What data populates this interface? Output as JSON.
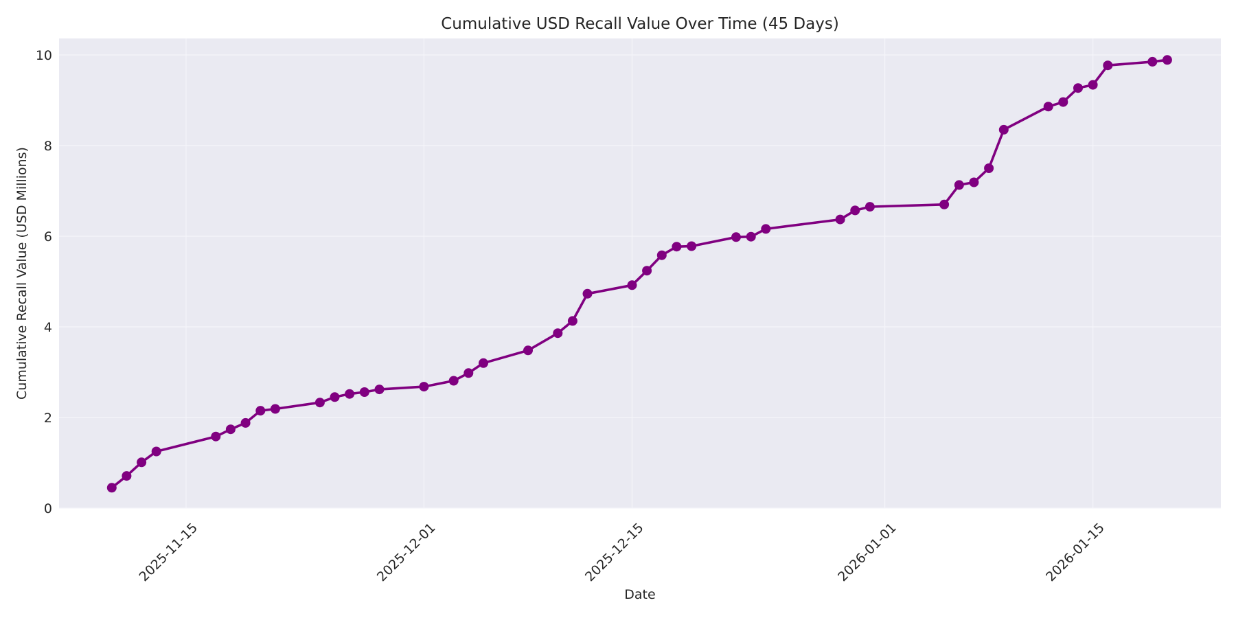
{
  "chart_data": {
    "type": "line",
    "title": "Cumulative USD Recall Value Over Time (45 Days)",
    "xlabel": "Date",
    "ylabel": "Cumulative Recall Value (USD Millions)",
    "ylim": [
      0,
      10.3
    ],
    "xlim": [
      "2025-11-06",
      "2026-01-23"
    ],
    "grid": true,
    "legend": null,
    "line_color": "#800080",
    "marker": "circle",
    "background_color": "#EAEAF2",
    "y_ticks": [
      0,
      2,
      4,
      6,
      8,
      10
    ],
    "x_ticks": [
      "2025-11-15",
      "2025-12-01",
      "2025-12-15",
      "2026-01-01",
      "2026-01-15"
    ],
    "x": [
      "2025-11-10",
      "2025-11-11",
      "2025-11-12",
      "2025-11-13",
      "2025-11-17",
      "2025-11-18",
      "2025-11-19",
      "2025-11-20",
      "2025-11-21",
      "2025-11-24",
      "2025-11-25",
      "2025-11-26",
      "2025-11-27",
      "2025-11-28",
      "2025-12-01",
      "2025-12-03",
      "2025-12-04",
      "2025-12-05",
      "2025-12-08",
      "2025-12-10",
      "2025-12-11",
      "2025-12-12",
      "2025-12-15",
      "2025-12-16",
      "2025-12-17",
      "2025-12-18",
      "2025-12-19",
      "2025-12-22",
      "2025-12-23",
      "2025-12-24",
      "2025-12-29",
      "2025-12-30",
      "2025-12-31",
      "2026-01-05",
      "2026-01-06",
      "2026-01-07",
      "2026-01-08",
      "2026-01-09",
      "2026-01-12",
      "2026-01-13",
      "2026-01-14",
      "2026-01-15",
      "2026-01-16",
      "2026-01-19",
      "2026-01-20"
    ],
    "series": [
      {
        "name": "Cumulative Recall Value",
        "values": [
          0.45,
          0.71,
          1.01,
          1.25,
          1.58,
          1.74,
          1.88,
          2.15,
          2.19,
          2.33,
          2.45,
          2.52,
          2.56,
          2.62,
          2.68,
          2.81,
          2.98,
          3.2,
          3.48,
          3.86,
          4.13,
          4.73,
          4.92,
          5.24,
          5.58,
          5.77,
          5.78,
          5.98,
          5.99,
          6.16,
          6.37,
          6.57,
          6.65,
          6.7,
          7.13,
          7.19,
          7.5,
          8.35,
          8.86,
          8.96,
          9.27,
          9.34,
          9.77,
          9.85,
          9.89
        ]
      }
    ]
  }
}
